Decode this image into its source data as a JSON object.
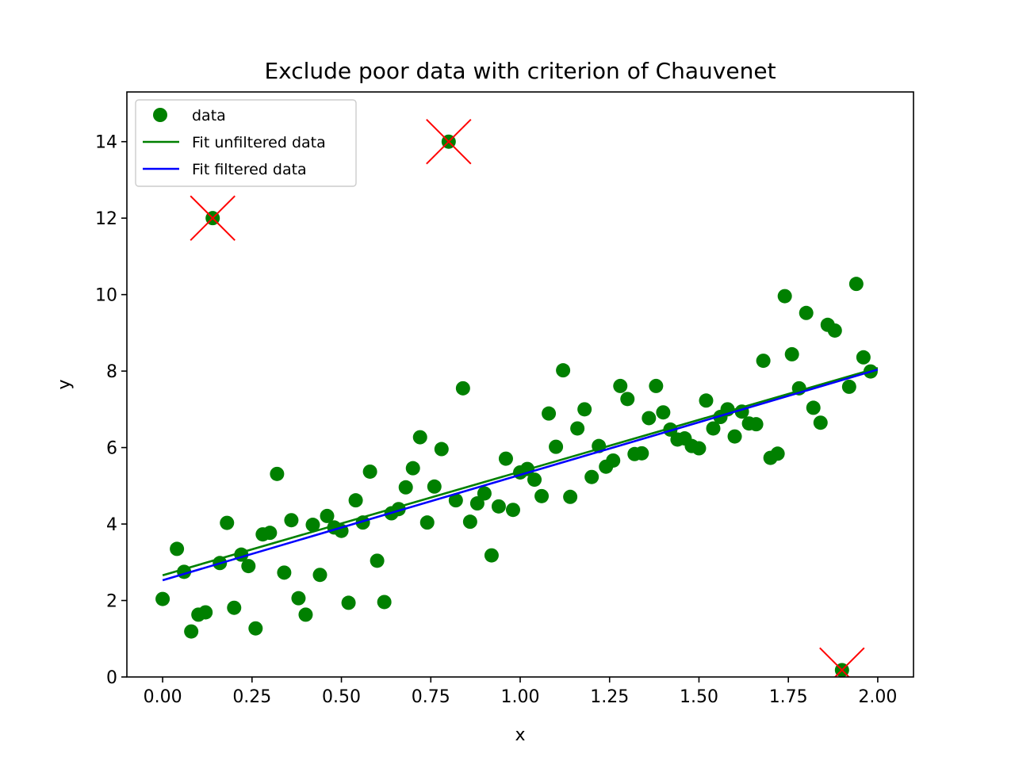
{
  "chart_data": {
    "type": "scatter",
    "title": "Exclude poor data with criterion of Chauvenet",
    "xlabel": "x",
    "ylabel": "y",
    "xlim": [
      -0.1,
      2.1
    ],
    "ylim": [
      0,
      15.3
    ],
    "xticks": [
      "0.00",
      "0.25",
      "0.50",
      "0.75",
      "1.00",
      "1.25",
      "1.50",
      "1.75",
      "2.00"
    ],
    "yticks": [
      "0",
      "2",
      "4",
      "6",
      "8",
      "10",
      "12",
      "14"
    ],
    "grid": false,
    "legend_position": "top-left",
    "series": [
      {
        "name": "data",
        "kind": "markers",
        "color": "#008000",
        "points": [
          [
            0.0,
            2.04
          ],
          [
            0.04,
            3.35
          ],
          [
            0.06,
            2.75
          ],
          [
            0.08,
            1.19
          ],
          [
            0.1,
            1.63
          ],
          [
            0.12,
            1.69
          ],
          [
            0.14,
            12.0
          ],
          [
            0.16,
            2.98
          ],
          [
            0.18,
            4.03
          ],
          [
            0.2,
            1.81
          ],
          [
            0.22,
            3.2
          ],
          [
            0.24,
            2.9
          ],
          [
            0.26,
            1.27
          ],
          [
            0.28,
            3.73
          ],
          [
            0.3,
            3.77
          ],
          [
            0.32,
            5.31
          ],
          [
            0.34,
            2.73
          ],
          [
            0.36,
            4.1
          ],
          [
            0.38,
            2.06
          ],
          [
            0.4,
            1.63
          ],
          [
            0.42,
            3.98
          ],
          [
            0.44,
            2.67
          ],
          [
            0.46,
            4.21
          ],
          [
            0.48,
            3.91
          ],
          [
            0.5,
            3.82
          ],
          [
            0.52,
            1.94
          ],
          [
            0.54,
            4.62
          ],
          [
            0.56,
            4.04
          ],
          [
            0.58,
            5.37
          ],
          [
            0.6,
            3.04
          ],
          [
            0.62,
            1.96
          ],
          [
            0.64,
            4.28
          ],
          [
            0.66,
            4.39
          ],
          [
            0.68,
            4.96
          ],
          [
            0.7,
            5.46
          ],
          [
            0.72,
            6.27
          ],
          [
            0.74,
            4.04
          ],
          [
            0.76,
            4.98
          ],
          [
            0.78,
            5.96
          ],
          [
            0.8,
            14.0
          ],
          [
            0.82,
            4.62
          ],
          [
            0.84,
            7.55
          ],
          [
            0.86,
            4.06
          ],
          [
            0.88,
            4.54
          ],
          [
            0.9,
            4.8
          ],
          [
            0.92,
            3.18
          ],
          [
            0.94,
            4.46
          ],
          [
            0.96,
            5.71
          ],
          [
            0.98,
            4.37
          ],
          [
            1.0,
            5.35
          ],
          [
            1.02,
            5.44
          ],
          [
            1.04,
            5.16
          ],
          [
            1.06,
            4.73
          ],
          [
            1.08,
            6.89
          ],
          [
            1.1,
            6.02
          ],
          [
            1.12,
            8.02
          ],
          [
            1.14,
            4.71
          ],
          [
            1.16,
            6.5
          ],
          [
            1.18,
            7.0
          ],
          [
            1.2,
            5.23
          ],
          [
            1.22,
            6.04
          ],
          [
            1.24,
            5.5
          ],
          [
            1.26,
            5.66
          ],
          [
            1.28,
            7.61
          ],
          [
            1.3,
            7.27
          ],
          [
            1.32,
            5.83
          ],
          [
            1.34,
            5.85
          ],
          [
            1.36,
            6.77
          ],
          [
            1.38,
            7.61
          ],
          [
            1.4,
            6.92
          ],
          [
            1.42,
            6.47
          ],
          [
            1.44,
            6.21
          ],
          [
            1.46,
            6.24
          ],
          [
            1.48,
            6.04
          ],
          [
            1.5,
            5.98
          ],
          [
            1.52,
            7.23
          ],
          [
            1.54,
            6.5
          ],
          [
            1.56,
            6.8
          ],
          [
            1.58,
            7.0
          ],
          [
            1.6,
            6.29
          ],
          [
            1.62,
            6.94
          ],
          [
            1.64,
            6.63
          ],
          [
            1.66,
            6.61
          ],
          [
            1.68,
            8.27
          ],
          [
            1.7,
            5.73
          ],
          [
            1.72,
            5.84
          ],
          [
            1.74,
            9.96
          ],
          [
            1.76,
            8.44
          ],
          [
            1.78,
            7.55
          ],
          [
            1.8,
            9.52
          ],
          [
            1.82,
            7.04
          ],
          [
            1.84,
            6.65
          ],
          [
            1.86,
            9.21
          ],
          [
            1.88,
            9.06
          ],
          [
            1.9,
            0.18
          ],
          [
            1.92,
            7.59
          ],
          [
            1.94,
            10.28
          ],
          [
            1.96,
            8.36
          ],
          [
            1.98,
            7.99
          ]
        ]
      },
      {
        "name": "Fit unfiltered data",
        "kind": "line",
        "color": "#008000",
        "points": [
          [
            0.0,
            2.66
          ],
          [
            2.0,
            8.08
          ]
        ]
      },
      {
        "name": "Fit filtered data",
        "kind": "line",
        "color": "#0000ff",
        "points": [
          [
            0.0,
            2.53
          ],
          [
            2.0,
            8.04
          ]
        ]
      }
    ],
    "excluded_points": {
      "color": "#ff0000",
      "marker": "x",
      "points": [
        [
          0.14,
          12.0
        ],
        [
          0.8,
          14.0
        ],
        [
          1.9,
          0.18
        ]
      ]
    }
  }
}
